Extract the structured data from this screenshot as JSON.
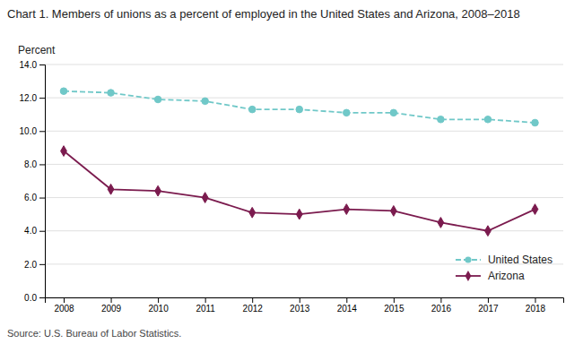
{
  "chart_data": {
    "type": "line",
    "title": "Chart 1. Members of unions as a percent of employed in the United States and Arizona, 2008–2018",
    "y_label": "Percent",
    "annotations": [
      "Source: U.S. Bureau of Labor Statistics."
    ],
    "x": [
      2008,
      2009,
      2010,
      2011,
      2012,
      2013,
      2014,
      2015,
      2016,
      2017,
      2018
    ],
    "xlim": [
      2007.6,
      2018.6
    ],
    "xticks": [
      2008,
      2009,
      2010,
      2011,
      2012,
      2013,
      2014,
      2015,
      2016,
      2017,
      2018
    ],
    "ylim": [
      0,
      14.0
    ],
    "yticks": [
      {
        "value": 0.0,
        "label": "0.0"
      },
      {
        "value": 2.0,
        "label": "2.0"
      },
      {
        "value": 4.0,
        "label": "4.0"
      },
      {
        "value": 6.0,
        "label": "6.0"
      },
      {
        "value": 8.0,
        "label": "8.0"
      },
      {
        "value": 10.0,
        "label": "10.0"
      },
      {
        "value": 12.0,
        "label": "12.0"
      },
      {
        "value": 14.0,
        "label": "14.0"
      }
    ],
    "grid": "y",
    "legend": "lower right",
    "series": [
      {
        "name": "United States",
        "color": "#70C8C8",
        "marker": "circle",
        "line_style": "dashed",
        "values": [
          12.4,
          12.3,
          11.9,
          11.8,
          11.3,
          11.3,
          11.1,
          11.1,
          10.7,
          10.7,
          10.5
        ]
      },
      {
        "name": "Arizona",
        "color": "#7B1B4E",
        "marker": "diamond",
        "line_style": "solid",
        "values": [
          8.8,
          6.5,
          6.4,
          6.0,
          5.1,
          5.0,
          5.3,
          5.2,
          4.5,
          4.0,
          5.3
        ]
      }
    ]
  }
}
